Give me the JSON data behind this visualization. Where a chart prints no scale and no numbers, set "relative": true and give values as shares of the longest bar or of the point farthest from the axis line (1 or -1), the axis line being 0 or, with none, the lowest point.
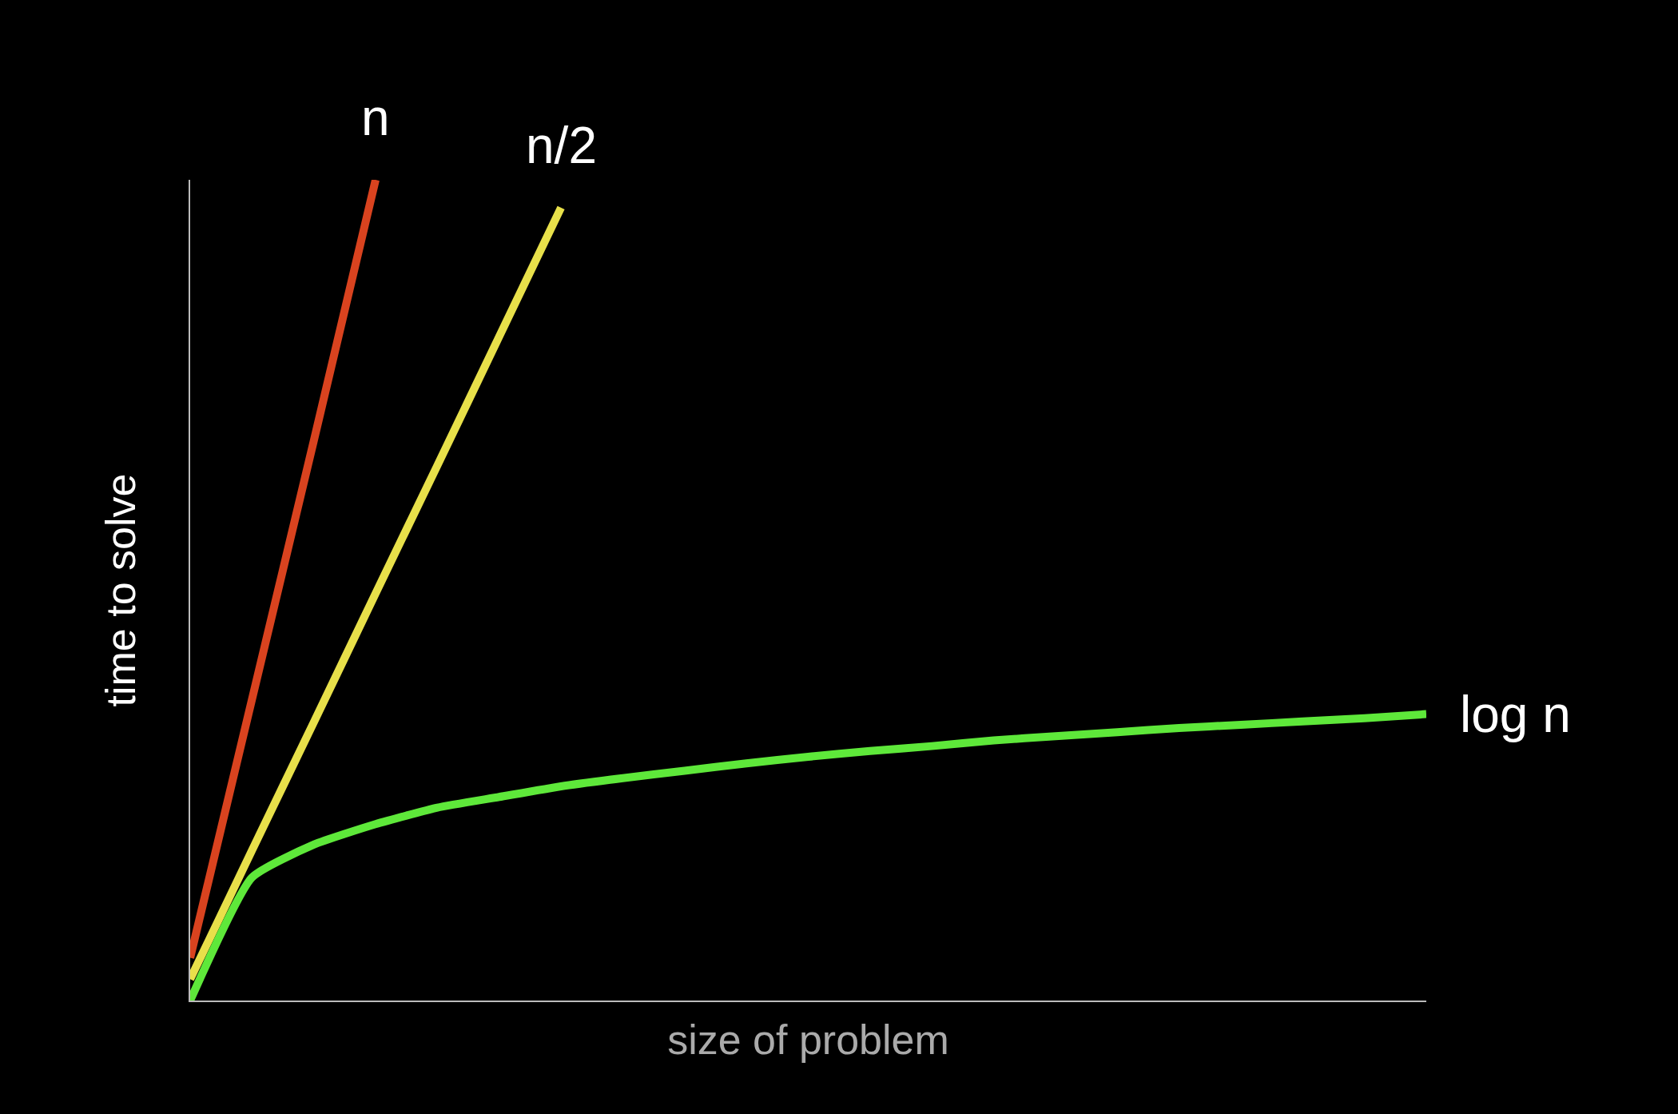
{
  "chart_data": {
    "type": "line",
    "relative": true,
    "xlabel": "size of problem",
    "ylabel": "time to solve",
    "tick_labels": false,
    "legend": false,
    "categories": [
      null,
      null,
      null,
      null,
      null,
      null,
      null,
      null,
      null,
      null,
      null,
      null,
      null,
      null,
      null,
      null,
      null,
      null,
      null,
      null,
      null
    ],
    "series": [
      {
        "name": "n",
        "color": "#d9431f",
        "values": [
          0.052,
          0.367,
          0.682,
          1.0,
          null,
          null,
          null,
          null,
          null,
          null,
          null,
          null,
          null,
          null,
          null,
          null,
          null,
          null,
          null,
          null,
          null
        ]
      },
      {
        "name": "n/2",
        "color": "#e8e04a",
        "values": [
          0.026,
          0.183,
          0.339,
          0.496,
          0.652,
          0.809,
          0.966,
          null,
          null,
          null,
          null,
          null,
          null,
          null,
          null,
          null,
          null,
          null,
          null,
          null,
          null
        ]
      },
      {
        "name": "log n",
        "color": "#5ee83a",
        "values": [
          0.0,
          0.15,
          0.19,
          0.215,
          0.235,
          0.248,
          0.261,
          0.271,
          0.28,
          0.289,
          0.297,
          0.304,
          0.31,
          0.317,
          0.322,
          0.327,
          0.332,
          0.336,
          0.34,
          0.344,
          0.349
        ]
      }
    ]
  }
}
